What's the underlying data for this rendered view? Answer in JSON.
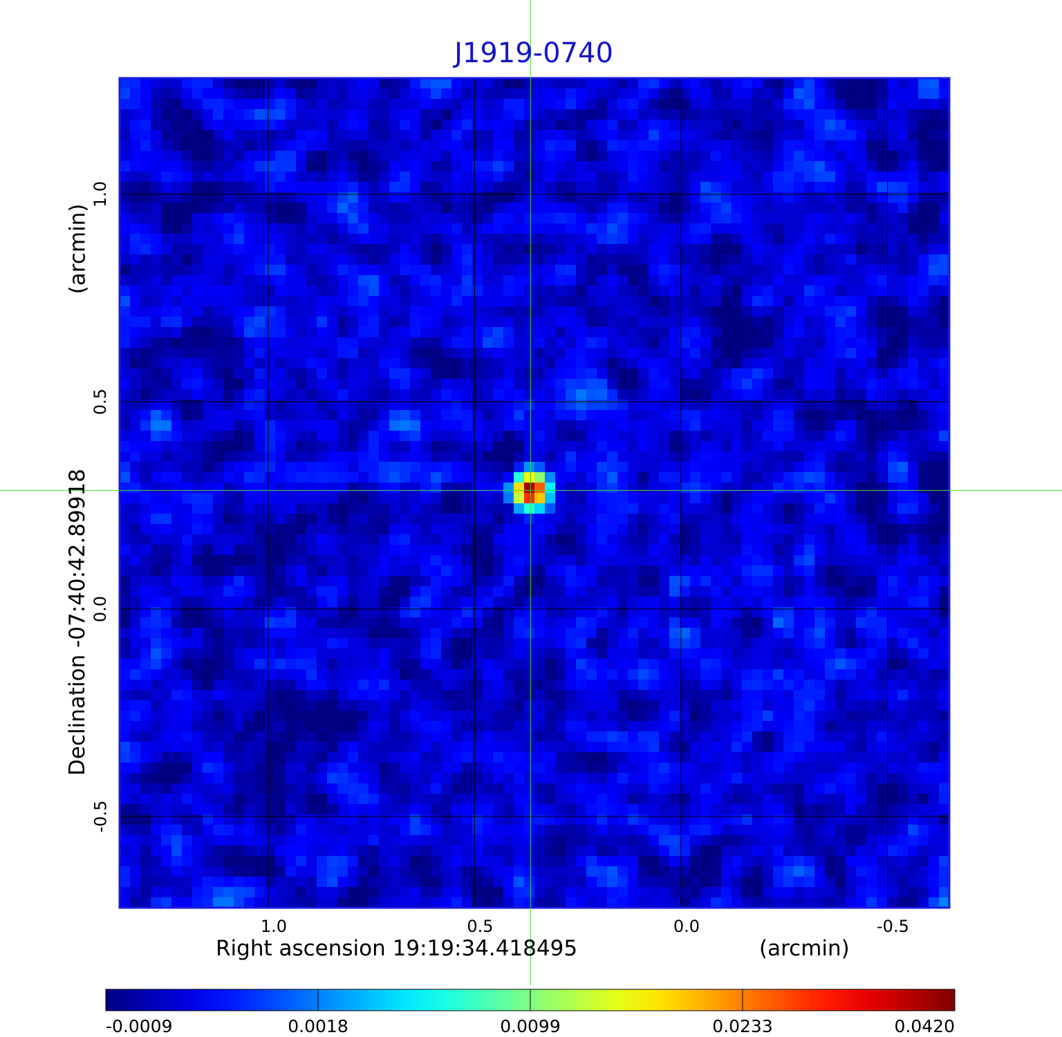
{
  "chart_data": {
    "type": "heatmap",
    "title": "J1919-0740",
    "xlabel": "Right ascension  19:19:34.418495",
    "xlabel_unit": "(arcmin)",
    "ylabel": "Declination  -07:40:42.89918",
    "ylabel_unit": "(arcmin)",
    "x_ticks": [
      "1.0",
      "0.5",
      "0.0",
      "-0.5"
    ],
    "x_tick_values": [
      1.0,
      0.5,
      0.0,
      -0.5
    ],
    "y_ticks": [
      "1.0",
      "0.5",
      "0.0",
      "-0.5"
    ],
    "y_tick_values": [
      1.0,
      0.5,
      0.0,
      -0.5
    ],
    "xlim": [
      1.36,
      -0.65
    ],
    "ylim": [
      -0.72,
      1.28
    ],
    "grid": true,
    "colormap": "jet",
    "colorbar": {
      "ticks": [
        "-0.0009",
        "0.0018",
        "0.0099",
        "0.0233",
        "0.0420"
      ],
      "values": [
        -0.0009,
        0.0018,
        0.0099,
        0.0233,
        0.042
      ]
    },
    "source": {
      "x": 0.364,
      "y": 0.286,
      "peak": 0.042
    },
    "crosshair": {
      "x": 0.364,
      "y": 0.286,
      "color": "#33dd33"
    },
    "background_level": 0.0,
    "noise_rms": 0.0009,
    "colors": {
      "title": "#1515c8",
      "frame": "#1a1ae0",
      "grid": "#000000"
    }
  }
}
